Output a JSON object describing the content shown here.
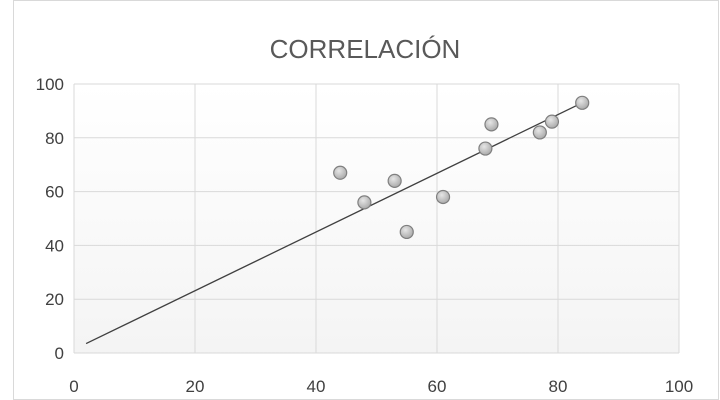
{
  "chart_data": {
    "type": "scatter",
    "title": "CORRELACIÓN",
    "xlim": [
      0,
      100
    ],
    "ylim": [
      0,
      100
    ],
    "x_ticks": [
      "0",
      "20",
      "40",
      "60",
      "80",
      "100"
    ],
    "y_ticks": [
      "0",
      "20",
      "40",
      "60",
      "80",
      "100"
    ],
    "grid": true,
    "points": [
      {
        "x": 44,
        "y": 67
      },
      {
        "x": 48,
        "y": 56
      },
      {
        "x": 53,
        "y": 64
      },
      {
        "x": 55,
        "y": 45
      },
      {
        "x": 61,
        "y": 58
      },
      {
        "x": 68,
        "y": 76
      },
      {
        "x": 69,
        "y": 85
      },
      {
        "x": 77,
        "y": 82
      },
      {
        "x": 79,
        "y": 86
      },
      {
        "x": 84,
        "y": 93
      }
    ],
    "trendline": {
      "x": [
        2,
        84
      ],
      "y": [
        3.5,
        93
      ]
    },
    "colors": {
      "marker_fill": "#b4b4b4",
      "marker_stroke": "#7f7f7f",
      "trendline": "#404040",
      "grid": "#d9d9d9",
      "plot_background": "#ffffff"
    }
  }
}
